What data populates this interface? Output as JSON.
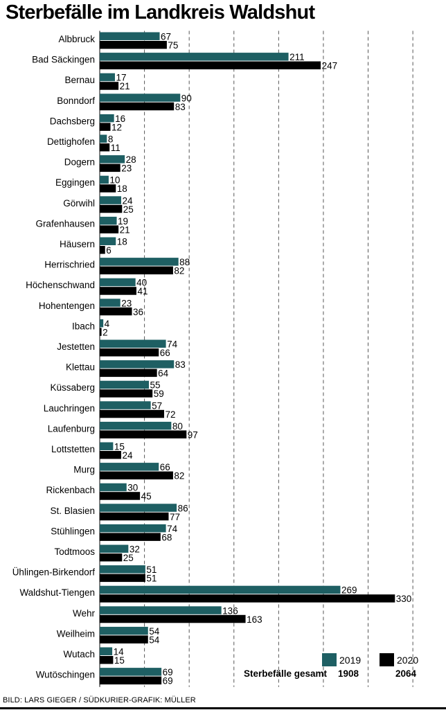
{
  "title": "Sterbefälle im Landkreis Waldshut",
  "credit": "BILD: LARS GIEGER / SÜDKURIER-GRAFIK: MÜLLER",
  "colors": {
    "series_2019": "#1e5f63",
    "series_2020": "#000000",
    "grid": "#555555"
  },
  "chart_data": {
    "type": "bar",
    "orientation": "horizontal",
    "title": "Sterbefälle im Landkreis Waldshut",
    "xlim": [
      0,
      350
    ],
    "grid": true,
    "legend_position": "bottom-right",
    "categories": [
      "Albbruck",
      "Bad Säckingen",
      "Bernau",
      "Bonndorf",
      "Dachsberg",
      "Dettighofen",
      "Dogern",
      "Eggingen",
      "Görwihl",
      "Grafenhausen",
      "Häusern",
      "Herrischried",
      "Höchenschwand",
      "Hohentengen",
      "Ibach",
      "Jestetten",
      "Klettau",
      "Küssaberg",
      "Lauchringen",
      "Laufenburg",
      "Lottstetten",
      "Murg",
      "Rickenbach",
      "St. Blasien",
      "Stühlingen",
      "Todtmoos",
      "Ühlingen-Birkendorf",
      "Waldshut-Tiengen",
      "Wehr",
      "Weilheim",
      "Wutach",
      "Wutöschingen"
    ],
    "series": [
      {
        "name": "2019",
        "values": [
          67,
          211,
          17,
          90,
          16,
          8,
          28,
          10,
          24,
          19,
          18,
          88,
          40,
          23,
          4,
          74,
          83,
          55,
          57,
          80,
          15,
          66,
          30,
          86,
          74,
          32,
          51,
          269,
          136,
          54,
          14,
          69
        ]
      },
      {
        "name": "2020",
        "values": [
          75,
          247,
          21,
          83,
          12,
          11,
          23,
          18,
          25,
          21,
          6,
          82,
          41,
          36,
          2,
          66,
          64,
          59,
          72,
          97,
          24,
          82,
          45,
          77,
          68,
          25,
          51,
          330,
          163,
          54,
          15,
          69
        ]
      }
    ],
    "totals": {
      "label": "Sterbefälle gesamt",
      "values": [
        "1908",
        "2064"
      ]
    }
  }
}
